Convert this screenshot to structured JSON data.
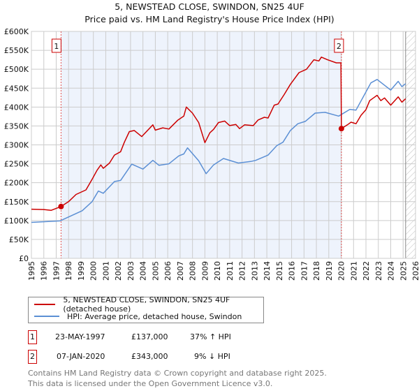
{
  "title": "5, NEWSTEAD CLOSE, SWINDON, SN25 4UF",
  "subtitle": "Price paid vs. HM Land Registry's House Price Index (HPI)",
  "chart_data": {
    "type": "line",
    "title": "5, NEWSTEAD CLOSE, SWINDON, SN25 4UF",
    "subtitle": "Price paid vs. HM Land Registry's House Price Index (HPI)",
    "xlim": [
      1995,
      2026
    ],
    "ylim": [
      0,
      600000
    ],
    "x_ticks": [
      "1995",
      "1996",
      "1997",
      "1998",
      "1999",
      "2000",
      "2001",
      "2002",
      "2003",
      "2004",
      "2005",
      "2006",
      "2007",
      "2008",
      "2009",
      "2010",
      "2011",
      "2012",
      "2013",
      "2014",
      "2015",
      "2016",
      "2017",
      "2018",
      "2019",
      "2020",
      "2021",
      "2022",
      "2023",
      "2024",
      "2025",
      "2026"
    ],
    "y_ticks": [
      {
        "v": 0,
        "label": "£0"
      },
      {
        "v": 50000,
        "label": "£50K"
      },
      {
        "v": 100000,
        "label": "£100K"
      },
      {
        "v": 150000,
        "label": "£150K"
      },
      {
        "v": 200000,
        "label": "£200K"
      },
      {
        "v": 250000,
        "label": "£250K"
      },
      {
        "v": 300000,
        "label": "£300K"
      },
      {
        "v": 350000,
        "label": "£350K"
      },
      {
        "v": 400000,
        "label": "£400K"
      },
      {
        "v": 450000,
        "label": "£450K"
      },
      {
        "v": 500000,
        "label": "£500K"
      },
      {
        "v": 550000,
        "label": "£550K"
      },
      {
        "v": 600000,
        "label": "£600K"
      }
    ],
    "grid": true,
    "legend_position": "bottom",
    "shaded_period": [
      1997.39,
      2020.02
    ],
    "forecast_hatch_from": 2025.2,
    "series": [
      {
        "name": "5, NEWSTEAD CLOSE, SWINDON, SN25 4UF (detached house)",
        "color": "#cc0000",
        "x": [
          1995,
          1996,
          1996.6,
          1997.39,
          1998,
          1998.6,
          1999.4,
          1999.9,
          2000.3,
          2000.6,
          2000.8,
          2001.3,
          2001.7,
          2002.2,
          2002.5,
          2002.9,
          2003.3,
          2003.9,
          2004.8,
          2005,
          2005.6,
          2006.1,
          2006.8,
          2007.3,
          2007.5,
          2008,
          2008.5,
          2009,
          2009.4,
          2009.7,
          2010.1,
          2010.6,
          2011,
          2011.5,
          2011.8,
          2012.2,
          2012.9,
          2013.3,
          2013.8,
          2014.1,
          2014.6,
          2014.9,
          2015.4,
          2015.9,
          2016.6,
          2017.2,
          2017.8,
          2018.2,
          2018.4,
          2018.9,
          2019.6,
          2019.98,
          2020.02,
          2020.5,
          2020.8,
          2021.2,
          2021.6,
          2022,
          2022.3,
          2022.6,
          2022.9,
          2023.2,
          2023.5,
          2024,
          2024.6,
          2024.9,
          2025.2
        ],
        "y": [
          130000,
          129000,
          127000,
          137000,
          150000,
          169000,
          181000,
          209000,
          233000,
          247000,
          238000,
          252000,
          273000,
          282000,
          307000,
          335000,
          338000,
          322000,
          353000,
          339000,
          345000,
          342000,
          365000,
          376000,
          400000,
          384000,
          359000,
          306000,
          332000,
          341000,
          359000,
          363000,
          351000,
          354000,
          343000,
          353000,
          351000,
          366000,
          373000,
          371000,
          405000,
          408000,
          433000,
          460000,
          491000,
          500000,
          525000,
          522000,
          532000,
          525000,
          517000,
          517000,
          343000,
          353000,
          360000,
          356000,
          378000,
          393000,
          417000,
          424000,
          431000,
          417000,
          424000,
          405000,
          427000,
          413000,
          422000
        ]
      },
      {
        "name": "HPI: Average price, detached house, Swindon",
        "color": "#5b8fd4",
        "x": [
          1995,
          1997.3,
          1999.1,
          1999.9,
          2000.4,
          2000.8,
          2001.7,
          2002.2,
          2003.1,
          2004,
          2004.8,
          2005.3,
          2006.1,
          2006.9,
          2007.3,
          2007.6,
          2008.5,
          2009.1,
          2009.7,
          2010.5,
          2011.7,
          2012.7,
          2013.1,
          2014.1,
          2014.8,
          2015.3,
          2015.9,
          2016.5,
          2017.1,
          2017.9,
          2018.7,
          2019.8,
          2020.7,
          2021.2,
          2022.4,
          2022.9,
          2024,
          2024.6,
          2024.9,
          2025.2
        ],
        "y": [
          95000,
          99000,
          126000,
          150000,
          178000,
          172000,
          203000,
          206000,
          249000,
          236000,
          259000,
          246000,
          250000,
          271000,
          276000,
          292000,
          258000,
          224000,
          247000,
          264000,
          252000,
          256000,
          259000,
          273000,
          298000,
          307000,
          338000,
          356000,
          362000,
          384000,
          386000,
          376000,
          394000,
          392000,
          464000,
          473000,
          445000,
          468000,
          454000,
          462000
        ]
      }
    ],
    "annotations": [
      {
        "label": "1",
        "x": 1997.39,
        "y": 137000
      },
      {
        "label": "2",
        "x": 2020.02,
        "y": 343000
      }
    ]
  },
  "legend": {
    "property": "5, NEWSTEAD CLOSE, SWINDON, SN25 4UF (detached house)",
    "hpi": "HPI: Average price, detached house, Swindon"
  },
  "sales": [
    {
      "num": "1",
      "date": "23-MAY-1997",
      "price": "£137,000",
      "hpi": "37% ↑ HPI"
    },
    {
      "num": "2",
      "date": "07-JAN-2020",
      "price": "£343,000",
      "hpi": "9% ↓ HPI"
    }
  ],
  "footer": {
    "line1": "Contains HM Land Registry data © Crown copyright and database right 2025.",
    "line2": "This data is licensed under the Open Government Licence v3.0."
  }
}
